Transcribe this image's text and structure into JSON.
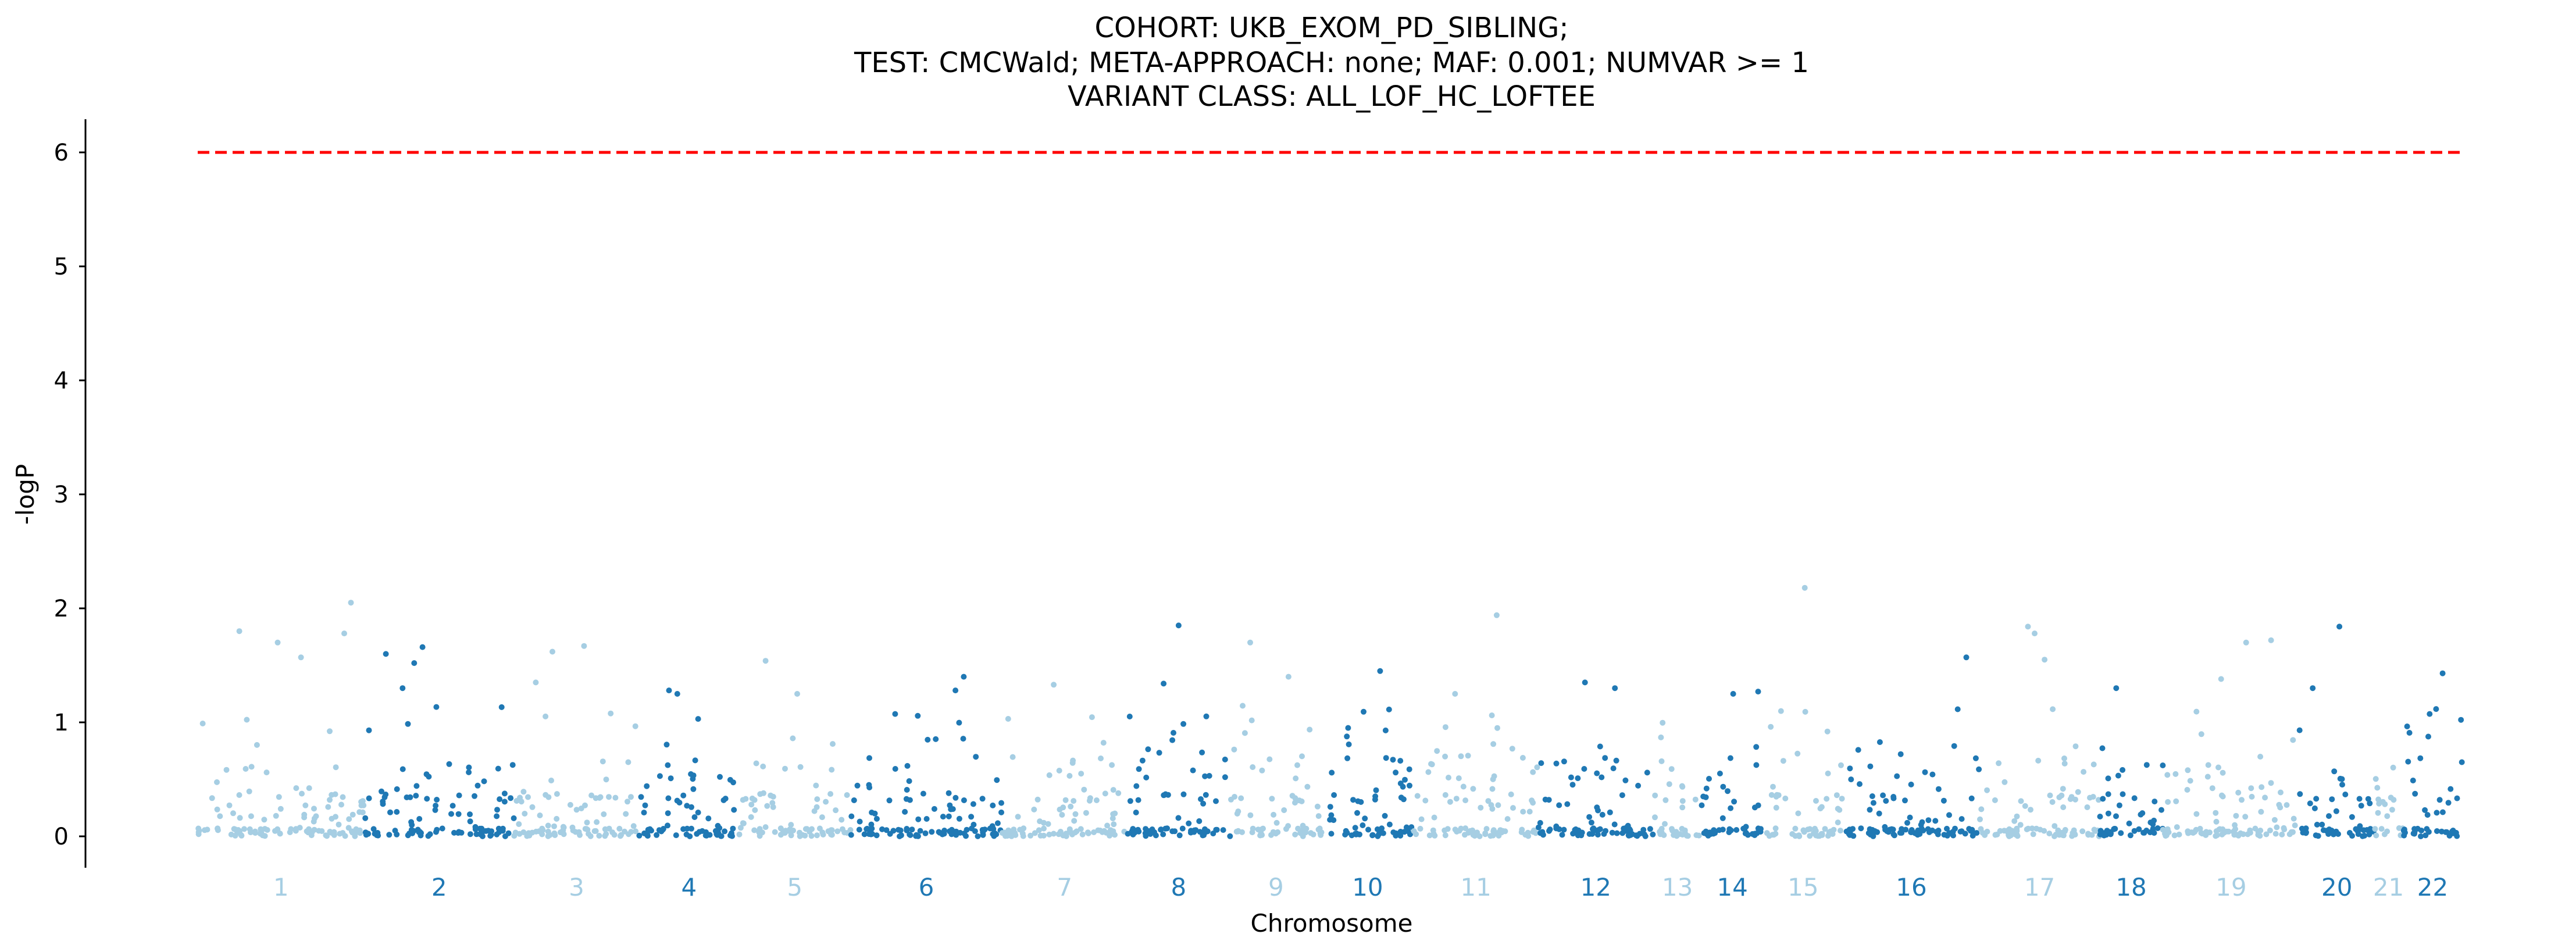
{
  "chart_data": {
    "type": "scatter",
    "title_lines": [
      "COHORT: UKB_EXOM_PD_SIBLING;",
      "TEST: CMCWald; META-APPROACH: none; MAF: 0.001; NUMVAR >= 1",
      "VARIANT CLASS: ALL_LOF_HC_LOFTEE"
    ],
    "xlabel": "Chromosome",
    "ylabel": "-logP",
    "ylim": [
      -0.3,
      6.3
    ],
    "yticks": [
      0,
      1,
      2,
      3,
      4,
      5,
      6
    ],
    "threshold": 6,
    "threshold_color": "#ff0000",
    "colors": {
      "odd": "#a6cee3",
      "even": "#1f78b4"
    },
    "chromosomes": [
      {
        "label": "1",
        "start": 0,
        "end": 1000
      },
      {
        "label": "2",
        "start": 1000,
        "end": 1900
      },
      {
        "label": "3",
        "start": 1900,
        "end": 2650
      },
      {
        "label": "4",
        "start": 2650,
        "end": 3250
      },
      {
        "label": "5",
        "start": 3250,
        "end": 3920
      },
      {
        "label": "6",
        "start": 3920,
        "end": 4830
      },
      {
        "label": "7",
        "start": 4830,
        "end": 5580
      },
      {
        "label": "8",
        "start": 5580,
        "end": 6200
      },
      {
        "label": "9",
        "start": 6200,
        "end": 6750
      },
      {
        "label": "10",
        "start": 6750,
        "end": 7300
      },
      {
        "label": "11",
        "start": 7300,
        "end": 8050
      },
      {
        "label": "12",
        "start": 8050,
        "end": 8740
      },
      {
        "label": "13",
        "start": 8740,
        "end": 9030
      },
      {
        "label": "14",
        "start": 9030,
        "end": 9400
      },
      {
        "label": "15",
        "start": 9400,
        "end": 9880
      },
      {
        "label": "16",
        "start": 9880,
        "end": 10700
      },
      {
        "label": "17",
        "start": 10700,
        "end": 11420
      },
      {
        "label": "18",
        "start": 11420,
        "end": 11800
      },
      {
        "label": "19",
        "start": 11800,
        "end": 12620
      },
      {
        "label": "20",
        "start": 12620,
        "end": 13070
      },
      {
        "label": "21",
        "start": 13070,
        "end": 13240
      },
      {
        "label": "22",
        "start": 13240,
        "end": 13600
      }
    ],
    "top_points": [
      {
        "chr": "1",
        "x": 30,
        "y": 0.99
      },
      {
        "chr": "1",
        "x": 250,
        "y": 1.8
      },
      {
        "chr": "1",
        "x": 480,
        "y": 1.7
      },
      {
        "chr": "1",
        "x": 620,
        "y": 1.57
      },
      {
        "chr": "1",
        "x": 880,
        "y": 1.78
      },
      {
        "chr": "1",
        "x": 920,
        "y": 2.05
      },
      {
        "chr": "2",
        "x": 1130,
        "y": 1.6
      },
      {
        "chr": "2",
        "x": 1300,
        "y": 1.52
      },
      {
        "chr": "2",
        "x": 1350,
        "y": 1.66
      },
      {
        "chr": "2",
        "x": 1230,
        "y": 1.3
      },
      {
        "chr": "3",
        "x": 2130,
        "y": 1.62
      },
      {
        "chr": "3",
        "x": 2320,
        "y": 1.67
      },
      {
        "chr": "3",
        "x": 2030,
        "y": 1.35
      },
      {
        "chr": "4",
        "x": 2830,
        "y": 1.28
      },
      {
        "chr": "4",
        "x": 2880,
        "y": 1.25
      },
      {
        "chr": "5",
        "x": 3410,
        "y": 1.54
      },
      {
        "chr": "5",
        "x": 3600,
        "y": 1.25
      },
      {
        "chr": "6",
        "x": 4600,
        "y": 1.4
      },
      {
        "chr": "6",
        "x": 4550,
        "y": 1.28
      },
      {
        "chr": "7",
        "x": 5140,
        "y": 1.33
      },
      {
        "chr": "8",
        "x": 5890,
        "y": 1.85
      },
      {
        "chr": "8",
        "x": 5800,
        "y": 1.34
      },
      {
        "chr": "9",
        "x": 6320,
        "y": 1.7
      },
      {
        "chr": "9",
        "x": 6550,
        "y": 1.4
      },
      {
        "chr": "10",
        "x": 7100,
        "y": 1.45
      },
      {
        "chr": "11",
        "x": 7800,
        "y": 1.94
      },
      {
        "chr": "11",
        "x": 7550,
        "y": 1.25
      },
      {
        "chr": "12",
        "x": 8330,
        "y": 1.35
      },
      {
        "chr": "12",
        "x": 8510,
        "y": 1.3
      },
      {
        "chr": "14",
        "x": 9220,
        "y": 1.25
      },
      {
        "chr": "14",
        "x": 9370,
        "y": 1.27
      },
      {
        "chr": "15",
        "x": 9650,
        "y": 2.18
      },
      {
        "chr": "16",
        "x": 10620,
        "y": 1.57
      },
      {
        "chr": "17",
        "x": 10990,
        "y": 1.84
      },
      {
        "chr": "17",
        "x": 11030,
        "y": 1.78
      },
      {
        "chr": "17",
        "x": 11090,
        "y": 1.55
      },
      {
        "chr": "18",
        "x": 11520,
        "y": 1.3
      },
      {
        "chr": "19",
        "x": 12300,
        "y": 1.7
      },
      {
        "chr": "19",
        "x": 12450,
        "y": 1.72
      },
      {
        "chr": "19",
        "x": 12150,
        "y": 1.38
      },
      {
        "chr": "20",
        "x": 12860,
        "y": 1.84
      },
      {
        "chr": "20",
        "x": 12700,
        "y": 1.3
      },
      {
        "chr": "22",
        "x": 13480,
        "y": 1.43
      }
    ]
  }
}
